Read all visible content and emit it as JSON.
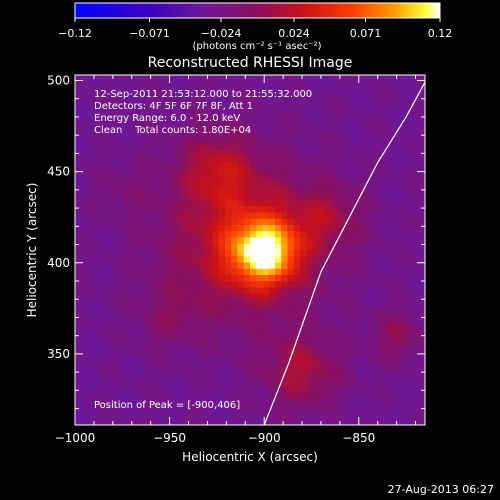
{
  "footer": {
    "timestamp": "27-Aug-2013 06:27"
  },
  "chart_data": {
    "type": "heatmap",
    "title": "Reconstructed RHESSI Image",
    "xlabel": "Heliocentric X (arcsec)",
    "ylabel": "Heliocentric Y (arcsec)",
    "xlim": [
      -1000,
      -815
    ],
    "ylim": [
      311,
      503
    ],
    "xticks": [
      -1000,
      -950,
      -900,
      -850
    ],
    "xtick_labels": [
      "−1000",
      "−950",
      "−900",
      "−850"
    ],
    "yticks": [
      350,
      400,
      450,
      500
    ],
    "ytick_labels": [
      "350",
      "400",
      "450",
      "500"
    ],
    "colorbar": {
      "range": [
        -0.12,
        0.12
      ],
      "ticks": [
        -0.12,
        -0.071,
        -0.024,
        0.024,
        0.071,
        0.12
      ],
      "tick_labels": [
        "−0.12",
        "−0.071",
        "−0.024",
        "0.024",
        "0.071",
        "0.12"
      ],
      "unit": "(photons cm⁻² s⁻¹ asec⁻²)"
    },
    "info": {
      "time_range": "12-Sep-2011 21:53:12.000 to 21:55:32.000",
      "detectors": "Detectors: 4F 5F 6F 7F 8F, Att 1",
      "energy_range": "Energy Range: 6.0 - 12.0 keV",
      "clean": "Clean    Total counts: 1.80E+04"
    },
    "peak_label": "Position of Peak = [-900,406]",
    "peak": [
      -900,
      406
    ],
    "sources": [
      {
        "x": -900,
        "y": 406,
        "amp": 0.12,
        "sigma": 12
      },
      {
        "x": -910,
        "y": 412,
        "amp": 0.06,
        "sigma": 30
      },
      {
        "x": -925,
        "y": 452,
        "amp": 0.04,
        "sigma": 14
      },
      {
        "x": -880,
        "y": 340,
        "amp": 0.045,
        "sigma": 14
      },
      {
        "x": -950,
        "y": 370,
        "amp": 0.02,
        "sigma": 12
      },
      {
        "x": -865,
        "y": 425,
        "amp": 0.03,
        "sigma": 12
      },
      {
        "x": -975,
        "y": 440,
        "amp": 0.012,
        "sigma": 10
      },
      {
        "x": -830,
        "y": 360,
        "amp": 0.03,
        "sigma": 10
      }
    ],
    "background": -0.03,
    "limb_curve": [
      [
        -900,
        311
      ],
      [
        -887,
        345
      ],
      [
        -870,
        395
      ],
      [
        -855,
        425
      ],
      [
        -840,
        455
      ],
      [
        -825,
        480
      ],
      [
        -815,
        499
      ]
    ]
  }
}
